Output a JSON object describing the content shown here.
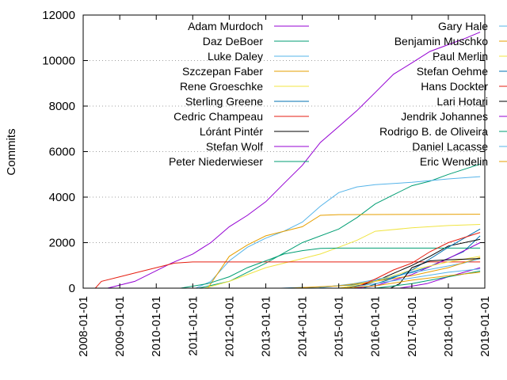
{
  "chart_data": {
    "type": "line",
    "ylabel": "Commits",
    "xlabel": "",
    "title": "",
    "ylim": [
      0,
      12000
    ],
    "xlim": [
      "2008-01-01",
      "2019-01-01"
    ],
    "x_ticks": [
      "2008-01-01",
      "2009-01-01",
      "2010-01-01",
      "2011-01-01",
      "2012-01-01",
      "2013-01-01",
      "2014-01-01",
      "2015-01-01",
      "2016-01-01",
      "2017-01-01",
      "2018-01-01",
      "2019-01-01"
    ],
    "y_ticks": [
      0,
      2000,
      4000,
      6000,
      8000,
      10000,
      12000
    ],
    "grid": "horizontal-dotted",
    "legend_position": "top, two columns",
    "series": [
      {
        "name": "Adam Murdoch",
        "color": "#9400d3",
        "points": [
          [
            "2008-09-01",
            0
          ],
          [
            "2009-06-01",
            300
          ],
          [
            "2010-06-01",
            1100
          ],
          [
            "2011-01-01",
            1500
          ],
          [
            "2011-07-01",
            2000
          ],
          [
            "2012-01-01",
            2700
          ],
          [
            "2012-07-01",
            3200
          ],
          [
            "2013-01-01",
            3800
          ],
          [
            "2013-07-01",
            4600
          ],
          [
            "2014-01-01",
            5400
          ],
          [
            "2014-07-01",
            6400
          ],
          [
            "2015-01-01",
            7100
          ],
          [
            "2015-07-01",
            7800
          ],
          [
            "2016-01-01",
            8600
          ],
          [
            "2016-07-01",
            9400
          ],
          [
            "2017-01-01",
            9900
          ],
          [
            "2017-07-01",
            10400
          ],
          [
            "2018-01-01",
            10700
          ],
          [
            "2018-07-01",
            11000
          ],
          [
            "2018-11-15",
            11250
          ]
        ]
      },
      {
        "name": "Daz DeBoer",
        "color": "#009e73",
        "points": [
          [
            "2011-03-01",
            0
          ],
          [
            "2012-01-01",
            300
          ],
          [
            "2013-01-01",
            1100
          ],
          [
            "2014-01-01",
            2000
          ],
          [
            "2015-01-01",
            2600
          ],
          [
            "2015-07-01",
            3100
          ],
          [
            "2016-01-01",
            3700
          ],
          [
            "2016-07-01",
            4100
          ],
          [
            "2017-01-01",
            4500
          ],
          [
            "2017-07-01",
            4700
          ],
          [
            "2018-01-01",
            5000
          ],
          [
            "2018-11-15",
            5450
          ]
        ]
      },
      {
        "name": "Luke Daley",
        "color": "#56b4e9",
        "points": [
          [
            "2011-02-01",
            0
          ],
          [
            "2011-07-01",
            300
          ],
          [
            "2012-01-01",
            1200
          ],
          [
            "2012-07-01",
            1800
          ],
          [
            "2013-01-01",
            2200
          ],
          [
            "2013-07-01",
            2500
          ],
          [
            "2014-01-01",
            2900
          ],
          [
            "2014-07-01",
            3600
          ],
          [
            "2015-01-01",
            4200
          ],
          [
            "2015-07-01",
            4450
          ],
          [
            "2016-01-01",
            4550
          ],
          [
            "2017-01-01",
            4650
          ],
          [
            "2018-01-01",
            4800
          ],
          [
            "2018-11-15",
            4900
          ]
        ]
      },
      {
        "name": "Szczepan Faber",
        "color": "#e69f00",
        "points": [
          [
            "2011-06-01",
            0
          ],
          [
            "2012-01-01",
            1400
          ],
          [
            "2012-07-01",
            1900
          ],
          [
            "2013-01-01",
            2300
          ],
          [
            "2014-01-01",
            2700
          ],
          [
            "2014-07-01",
            3200
          ],
          [
            "2015-01-01",
            3230
          ],
          [
            "2017-01-01",
            3240
          ],
          [
            "2018-11-15",
            3250
          ]
        ]
      },
      {
        "name": "Rene Groeschke",
        "color": "#f0e442",
        "points": [
          [
            "2011-05-01",
            0
          ],
          [
            "2012-01-01",
            300
          ],
          [
            "2013-01-01",
            900
          ],
          [
            "2014-01-01",
            1300
          ],
          [
            "2014-07-01",
            1500
          ],
          [
            "2015-01-01",
            1800
          ],
          [
            "2015-07-01",
            2100
          ],
          [
            "2016-01-01",
            2500
          ],
          [
            "2017-01-01",
            2650
          ],
          [
            "2018-01-01",
            2750
          ],
          [
            "2018-11-15",
            2800
          ]
        ]
      },
      {
        "name": "Sterling Greene",
        "color": "#0072b2",
        "points": [
          [
            "2013-06-01",
            0
          ],
          [
            "2014-06-01",
            50
          ],
          [
            "2015-06-01",
            150
          ],
          [
            "2016-06-01",
            450
          ],
          [
            "2017-06-01",
            900
          ],
          [
            "2018-06-01",
            1600
          ],
          [
            "2018-11-15",
            2300
          ]
        ]
      },
      {
        "name": "Cedric Champeau",
        "color": "#e51e10",
        "points": [
          [
            "2008-05-01",
            0
          ],
          [
            "2008-07-01",
            300
          ],
          [
            "2009-01-01",
            500
          ],
          [
            "2009-07-01",
            700
          ],
          [
            "2010-01-01",
            900
          ],
          [
            "2010-07-01",
            1100
          ],
          [
            "2011-01-01",
            1150
          ],
          [
            "2018-11-15",
            1150
          ]
        ]
      },
      {
        "name": "Lóránt Pintér",
        "color": "#000000",
        "points": [
          [
            "2015-03-01",
            0
          ],
          [
            "2015-09-01",
            150
          ],
          [
            "2016-01-01",
            300
          ],
          [
            "2016-07-01",
            650
          ],
          [
            "2017-01-01",
            1000
          ],
          [
            "2017-07-01",
            1400
          ],
          [
            "2018-01-01",
            1850
          ],
          [
            "2018-11-15",
            2150
          ]
        ]
      },
      {
        "name": "Stefan Wolf",
        "color": "#9400d3",
        "points": [
          [
            "2015-06-01",
            0
          ],
          [
            "2016-01-01",
            100
          ],
          [
            "2017-01-01",
            600
          ],
          [
            "2018-01-01",
            1300
          ],
          [
            "2018-11-15",
            2000
          ]
        ]
      },
      {
        "name": "Peter Niederwieser",
        "color": "#009e73",
        "points": [
          [
            "2010-09-01",
            0
          ],
          [
            "2011-06-01",
            200
          ],
          [
            "2012-01-01",
            500
          ],
          [
            "2012-07-01",
            900
          ],
          [
            "2013-01-01",
            1200
          ],
          [
            "2013-07-01",
            1500
          ],
          [
            "2014-01-01",
            1650
          ],
          [
            "2014-07-01",
            1750
          ],
          [
            "2015-01-01",
            1760
          ],
          [
            "2018-11-15",
            1760
          ]
        ]
      },
      {
        "name": "Gary Hale",
        "color": "#56b4e9",
        "points": [
          [
            "2014-06-01",
            0
          ],
          [
            "2015-06-01",
            200
          ],
          [
            "2016-06-01",
            500
          ],
          [
            "2017-06-01",
            800
          ],
          [
            "2018-06-01",
            1100
          ],
          [
            "2018-11-15",
            1300
          ]
        ]
      },
      {
        "name": "Benjamin Muschko",
        "color": "#e69f00",
        "points": [
          [
            "2013-09-01",
            0
          ],
          [
            "2015-01-01",
            100
          ],
          [
            "2016-01-01",
            300
          ],
          [
            "2017-01-01",
            550
          ],
          [
            "2018-01-01",
            900
          ],
          [
            "2018-11-15",
            1350
          ]
        ]
      },
      {
        "name": "Paul Merlin",
        "color": "#f0e442",
        "points": [
          [
            "2015-01-01",
            0
          ],
          [
            "2016-01-01",
            300
          ],
          [
            "2017-01-01",
            800
          ],
          [
            "2018-01-01",
            1150
          ],
          [
            "2018-11-15",
            1400
          ]
        ]
      },
      {
        "name": "Stefan Oehme",
        "color": "#0072b2",
        "points": [
          [
            "2015-09-01",
            0
          ],
          [
            "2016-06-01",
            400
          ],
          [
            "2017-01-01",
            800
          ],
          [
            "2017-06-01",
            1200
          ],
          [
            "2018-01-01",
            1800
          ],
          [
            "2018-11-15",
            2600
          ]
        ]
      },
      {
        "name": "Hans Dockter",
        "color": "#e51e10",
        "points": [
          [
            "2015-06-01",
            0
          ],
          [
            "2016-01-01",
            400
          ],
          [
            "2016-07-01",
            800
          ],
          [
            "2017-01-01",
            1100
          ],
          [
            "2017-07-01",
            1600
          ],
          [
            "2018-01-01",
            2000
          ],
          [
            "2018-11-15",
            2450
          ]
        ]
      },
      {
        "name": "Lari Hotari",
        "color": "#000000",
        "points": [
          [
            "2016-06-01",
            0
          ],
          [
            "2016-09-01",
            200
          ],
          [
            "2017-01-01",
            900
          ],
          [
            "2017-07-01",
            1200
          ],
          [
            "2018-01-01",
            1250
          ],
          [
            "2018-11-15",
            1300
          ]
        ]
      },
      {
        "name": "Jendrik Johannes",
        "color": "#9400d3",
        "points": [
          [
            "2016-09-01",
            0
          ],
          [
            "2017-06-01",
            200
          ],
          [
            "2018-01-01",
            500
          ],
          [
            "2018-11-15",
            900
          ]
        ]
      },
      {
        "name": "Rodrigo B. de Oliveira",
        "color": "#009e73",
        "points": [
          [
            "2016-01-01",
            0
          ],
          [
            "2017-01-01",
            200
          ],
          [
            "2018-01-01",
            500
          ],
          [
            "2018-11-15",
            750
          ]
        ]
      },
      {
        "name": "Daniel Lacasse",
        "color": "#56b4e9",
        "points": [
          [
            "2015-03-01",
            0
          ],
          [
            "2016-01-01",
            200
          ],
          [
            "2017-01-01",
            450
          ],
          [
            "2018-01-01",
            700
          ],
          [
            "2018-11-15",
            850
          ]
        ]
      },
      {
        "name": "Eric Wendelin",
        "color": "#e69f00",
        "points": [
          [
            "2015-01-01",
            0
          ],
          [
            "2016-01-01",
            100
          ],
          [
            "2017-01-01",
            350
          ],
          [
            "2018-01-01",
            550
          ],
          [
            "2018-11-15",
            700
          ]
        ]
      }
    ]
  }
}
